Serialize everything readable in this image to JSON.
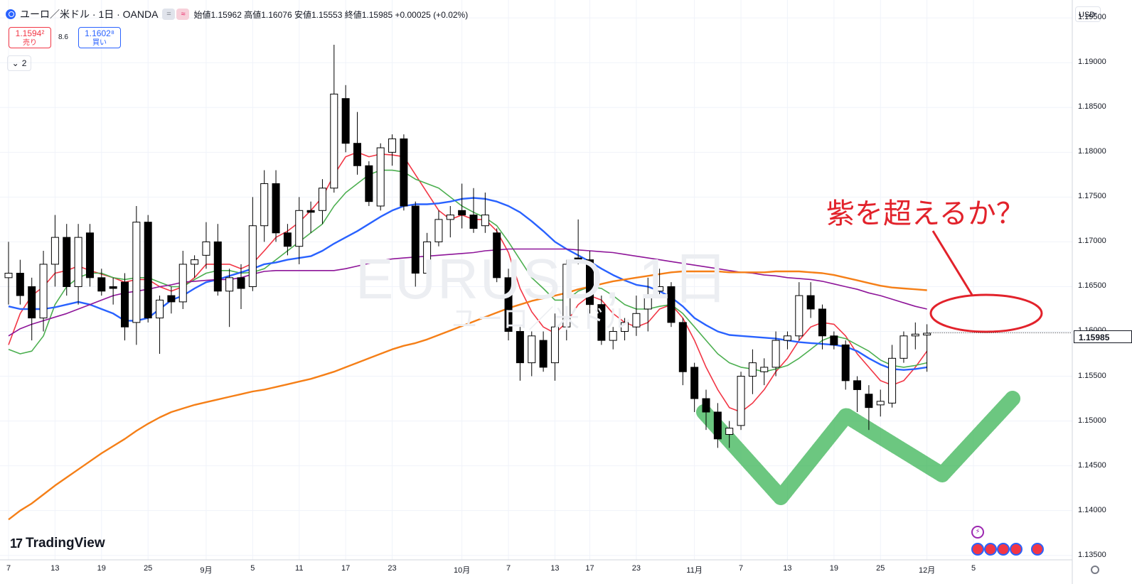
{
  "header": {
    "symbol_title": "ユーロ／米ドル · 1日 · OANDA",
    "open_label": "始値",
    "open": "1.15962",
    "high_label": "高値",
    "high": "1.16076",
    "low_label": "安値",
    "low": "1.15553",
    "close_label": "終値",
    "close": "1.15985",
    "change": "+0.00025 (+0.02%)",
    "pill1": "=",
    "pill2": "≈"
  },
  "trade": {
    "sell_price": "1.1594²",
    "sell_label": "売り",
    "spread": "8.6",
    "buy_price": "1.1602⁸",
    "buy_label": "買い",
    "collapse_count": "2"
  },
  "axis": {
    "currency": "USD",
    "current_price": "1.15985"
  },
  "annotation_text": "紫を超えるか？",
  "watermark": {
    "symbol": "EURUSD, 1日",
    "name": "ユーロ／米ドル"
  },
  "logo_text": "TradingView",
  "colors": {
    "up": "#ffffff",
    "down": "#000000",
    "ma_red": "#f23645",
    "ma_green": "#4caf50",
    "ma_blue": "#2962ff",
    "ma_purple": "#8e1599",
    "ma_orange": "#f57f17",
    "annotation": "#e2222b",
    "w_pattern": "#2eaf4a"
  },
  "chart_data": {
    "type": "candlestick",
    "ylim": [
      1.1345,
      1.197
    ],
    "yticks": [
      "1.19500",
      "1.19000",
      "1.18500",
      "1.18000",
      "1.17500",
      "1.17000",
      "1.16500",
      "1.16000",
      "1.15500",
      "1.15000",
      "1.14500",
      "1.14000",
      "1.13500"
    ],
    "x_tick_labels": [
      "7",
      "13",
      "19",
      "25",
      "9月",
      "5",
      "11",
      "17",
      "23",
      "10月",
      "7",
      "13",
      "17",
      "23",
      "11月",
      "7",
      "13",
      "19",
      "25",
      "12月",
      "5"
    ],
    "candles": [
      {
        "o": 1.166,
        "h": 1.17,
        "l": 1.163,
        "c": 1.1665
      },
      {
        "o": 1.1665,
        "h": 1.168,
        "l": 1.163,
        "c": 1.164
      },
      {
        "o": 1.165,
        "h": 1.166,
        "l": 1.159,
        "c": 1.1615
      },
      {
        "o": 1.1615,
        "h": 1.169,
        "l": 1.16,
        "c": 1.1675
      },
      {
        "o": 1.1675,
        "h": 1.173,
        "l": 1.165,
        "c": 1.1705
      },
      {
        "o": 1.1705,
        "h": 1.172,
        "l": 1.164,
        "c": 1.165
      },
      {
        "o": 1.165,
        "h": 1.172,
        "l": 1.163,
        "c": 1.1705
      },
      {
        "o": 1.171,
        "h": 1.172,
        "l": 1.165,
        "c": 1.166
      },
      {
        "o": 1.166,
        "h": 1.167,
        "l": 1.164,
        "c": 1.1645
      },
      {
        "o": 1.165,
        "h": 1.166,
        "l": 1.163,
        "c": 1.1648
      },
      {
        "o": 1.1655,
        "h": 1.1665,
        "l": 1.159,
        "c": 1.1605
      },
      {
        "o": 1.161,
        "h": 1.174,
        "l": 1.1585,
        "c": 1.1722
      },
      {
        "o": 1.1722,
        "h": 1.173,
        "l": 1.161,
        "c": 1.1615
      },
      {
        "o": 1.1615,
        "h": 1.164,
        "l": 1.1575,
        "c": 1.1635
      },
      {
        "o": 1.164,
        "h": 1.165,
        "l": 1.162,
        "c": 1.1633
      },
      {
        "o": 1.1633,
        "h": 1.169,
        "l": 1.1625,
        "c": 1.1675
      },
      {
        "o": 1.1675,
        "h": 1.1685,
        "l": 1.166,
        "c": 1.168
      },
      {
        "o": 1.1685,
        "h": 1.1722,
        "l": 1.167,
        "c": 1.17
      },
      {
        "o": 1.17,
        "h": 1.172,
        "l": 1.164,
        "c": 1.1645
      },
      {
        "o": 1.1645,
        "h": 1.167,
        "l": 1.1605,
        "c": 1.166
      },
      {
        "o": 1.166,
        "h": 1.1675,
        "l": 1.1625,
        "c": 1.1648
      },
      {
        "o": 1.165,
        "h": 1.175,
        "l": 1.1645,
        "c": 1.1718
      },
      {
        "o": 1.1718,
        "h": 1.178,
        "l": 1.17,
        "c": 1.1765
      },
      {
        "o": 1.1765,
        "h": 1.178,
        "l": 1.17,
        "c": 1.171
      },
      {
        "o": 1.171,
        "h": 1.172,
        "l": 1.1685,
        "c": 1.1695
      },
      {
        "o": 1.1695,
        "h": 1.175,
        "l": 1.1675,
        "c": 1.1735
      },
      {
        "o": 1.1735,
        "h": 1.1745,
        "l": 1.171,
        "c": 1.1733
      },
      {
        "o": 1.1735,
        "h": 1.177,
        "l": 1.172,
        "c": 1.176
      },
      {
        "o": 1.176,
        "h": 1.192,
        "l": 1.1755,
        "c": 1.1865
      },
      {
        "o": 1.186,
        "h": 1.1875,
        "l": 1.18,
        "c": 1.181
      },
      {
        "o": 1.181,
        "h": 1.1845,
        "l": 1.1775,
        "c": 1.1785
      },
      {
        "o": 1.1785,
        "h": 1.179,
        "l": 1.174,
        "c": 1.1745
      },
      {
        "o": 1.174,
        "h": 1.181,
        "l": 1.1735,
        "c": 1.1805
      },
      {
        "o": 1.18,
        "h": 1.182,
        "l": 1.1785,
        "c": 1.1815
      },
      {
        "o": 1.1815,
        "h": 1.182,
        "l": 1.1735,
        "c": 1.174
      },
      {
        "o": 1.174,
        "h": 1.1745,
        "l": 1.165,
        "c": 1.1665
      },
      {
        "o": 1.1665,
        "h": 1.171,
        "l": 1.1655,
        "c": 1.17
      },
      {
        "o": 1.17,
        "h": 1.1735,
        "l": 1.1695,
        "c": 1.1725
      },
      {
        "o": 1.1725,
        "h": 1.174,
        "l": 1.1705,
        "c": 1.173
      },
      {
        "o": 1.1735,
        "h": 1.1765,
        "l": 1.1715,
        "c": 1.173
      },
      {
        "o": 1.173,
        "h": 1.176,
        "l": 1.171,
        "c": 1.1715
      },
      {
        "o": 1.1718,
        "h": 1.1755,
        "l": 1.171,
        "c": 1.173
      },
      {
        "o": 1.171,
        "h": 1.1715,
        "l": 1.1655,
        "c": 1.166
      },
      {
        "o": 1.166,
        "h": 1.167,
        "l": 1.159,
        "c": 1.16
      },
      {
        "o": 1.16,
        "h": 1.1605,
        "l": 1.1545,
        "c": 1.1565
      },
      {
        "o": 1.1565,
        "h": 1.16,
        "l": 1.155,
        "c": 1.1595
      },
      {
        "o": 1.159,
        "h": 1.16,
        "l": 1.1555,
        "c": 1.156
      },
      {
        "o": 1.1565,
        "h": 1.162,
        "l": 1.1545,
        "c": 1.1605
      },
      {
        "o": 1.1605,
        "h": 1.168,
        "l": 1.159,
        "c": 1.1675
      },
      {
        "o": 1.1682,
        "h": 1.1725,
        "l": 1.1675,
        "c": 1.168
      },
      {
        "o": 1.168,
        "h": 1.169,
        "l": 1.162,
        "c": 1.163
      },
      {
        "o": 1.163,
        "h": 1.164,
        "l": 1.1585,
        "c": 1.159
      },
      {
        "o": 1.159,
        "h": 1.1605,
        "l": 1.158,
        "c": 1.16
      },
      {
        "o": 1.16,
        "h": 1.1615,
        "l": 1.159,
        "c": 1.161
      },
      {
        "o": 1.1605,
        "h": 1.164,
        "l": 1.1595,
        "c": 1.162
      },
      {
        "o": 1.1625,
        "h": 1.166,
        "l": 1.16,
        "c": 1.164
      },
      {
        "o": 1.1645,
        "h": 1.167,
        "l": 1.164,
        "c": 1.165
      },
      {
        "o": 1.165,
        "h": 1.1655,
        "l": 1.1605,
        "c": 1.161
      },
      {
        "o": 1.161,
        "h": 1.1615,
        "l": 1.154,
        "c": 1.1555
      },
      {
        "o": 1.156,
        "h": 1.1565,
        "l": 1.151,
        "c": 1.1525
      },
      {
        "o": 1.1525,
        "h": 1.1535,
        "l": 1.149,
        "c": 1.151
      },
      {
        "o": 1.151,
        "h": 1.152,
        "l": 1.147,
        "c": 1.148
      },
      {
        "o": 1.1485,
        "h": 1.15,
        "l": 1.147,
        "c": 1.1492
      },
      {
        "o": 1.1495,
        "h": 1.1555,
        "l": 1.149,
        "c": 1.155
      },
      {
        "o": 1.155,
        "h": 1.158,
        "l": 1.153,
        "c": 1.1565
      },
      {
        "o": 1.1555,
        "h": 1.157,
        "l": 1.154,
        "c": 1.156
      },
      {
        "o": 1.156,
        "h": 1.16,
        "l": 1.155,
        "c": 1.159
      },
      {
        "o": 1.159,
        "h": 1.16,
        "l": 1.158,
        "c": 1.1595
      },
      {
        "o": 1.1595,
        "h": 1.1655,
        "l": 1.159,
        "c": 1.164
      },
      {
        "o": 1.164,
        "h": 1.1655,
        "l": 1.1615,
        "c": 1.1625
      },
      {
        "o": 1.1625,
        "h": 1.163,
        "l": 1.158,
        "c": 1.1595
      },
      {
        "o": 1.1595,
        "h": 1.16,
        "l": 1.158,
        "c": 1.1585
      },
      {
        "o": 1.1585,
        "h": 1.159,
        "l": 1.1535,
        "c": 1.1545
      },
      {
        "o": 1.1545,
        "h": 1.155,
        "l": 1.151,
        "c": 1.1535
      },
      {
        "o": 1.153,
        "h": 1.154,
        "l": 1.149,
        "c": 1.1515
      },
      {
        "o": 1.1518,
        "h": 1.1535,
        "l": 1.1505,
        "c": 1.1522
      },
      {
        "o": 1.152,
        "h": 1.1585,
        "l": 1.1515,
        "c": 1.157
      },
      {
        "o": 1.157,
        "h": 1.16,
        "l": 1.1565,
        "c": 1.1595
      },
      {
        "o": 1.1595,
        "h": 1.161,
        "l": 1.158,
        "c": 1.1597
      },
      {
        "o": 1.1596,
        "h": 1.1608,
        "l": 1.1555,
        "c": 1.1598
      }
    ],
    "moving_averages": [
      {
        "color": "#f23645",
        "values": [
          1.1585,
          1.162,
          1.164,
          1.165,
          1.1665,
          1.1668,
          1.1673,
          1.1668,
          1.1664,
          1.166,
          1.1655,
          1.1658,
          1.1658,
          1.165,
          1.1645,
          1.165,
          1.166,
          1.1675,
          1.1675,
          1.1675,
          1.167,
          1.1676,
          1.169,
          1.1705,
          1.1712,
          1.1722,
          1.1735,
          1.175,
          1.1775,
          1.1795,
          1.18,
          1.1795,
          1.1798,
          1.1797,
          1.1795,
          1.1775,
          1.1755,
          1.1735,
          1.1725,
          1.173,
          1.1725,
          1.1725,
          1.1712,
          1.1688,
          1.1648,
          1.1622,
          1.1605,
          1.1598,
          1.161,
          1.163,
          1.164,
          1.1635,
          1.162,
          1.161,
          1.1605,
          1.161,
          1.1625,
          1.163,
          1.1615,
          1.159,
          1.156,
          1.1535,
          1.1515,
          1.151,
          1.152,
          1.1535,
          1.1555,
          1.157,
          1.159,
          1.1605,
          1.161,
          1.1608,
          1.1595,
          1.1575,
          1.156,
          1.1545,
          1.154,
          1.1545,
          1.156,
          1.1578
        ]
      },
      {
        "color": "#4caf50",
        "values": [
          1.158,
          1.1575,
          1.1578,
          1.1595,
          1.163,
          1.165,
          1.166,
          1.1665,
          1.1665,
          1.166,
          1.1658,
          1.166,
          1.166,
          1.1655,
          1.165,
          1.165,
          1.1658,
          1.1665,
          1.1668,
          1.1668,
          1.1665,
          1.1666,
          1.167,
          1.168,
          1.169,
          1.17,
          1.171,
          1.172,
          1.174,
          1.1755,
          1.1765,
          1.1775,
          1.178,
          1.178,
          1.1778,
          1.177,
          1.1765,
          1.176,
          1.175,
          1.174,
          1.1733,
          1.1727,
          1.1718,
          1.17,
          1.168,
          1.166,
          1.1648,
          1.1635,
          1.1635,
          1.1645,
          1.165,
          1.1648,
          1.164,
          1.163,
          1.1625,
          1.1625,
          1.1628,
          1.163,
          1.162,
          1.1605,
          1.159,
          1.1575,
          1.1565,
          1.156,
          1.1558,
          1.1555,
          1.1558,
          1.1562,
          1.157,
          1.158,
          1.159,
          1.1595,
          1.1592,
          1.1585,
          1.1578,
          1.1568,
          1.1562,
          1.156,
          1.1562,
          1.1565
        ]
      },
      {
        "color": "#2962ff",
        "values": [
          1.1628,
          1.1625,
          1.1625,
          1.1625,
          1.1627,
          1.163,
          1.1633,
          1.163,
          1.1625,
          1.162,
          1.1612,
          1.1612,
          1.1615,
          1.1625,
          1.1635,
          1.164,
          1.1648,
          1.1655,
          1.1658,
          1.1662,
          1.1666,
          1.167,
          1.1675,
          1.1677,
          1.168,
          1.1682,
          1.1684,
          1.169,
          1.1698,
          1.1705,
          1.1712,
          1.172,
          1.1728,
          1.1735,
          1.174,
          1.1742,
          1.1742,
          1.1743,
          1.1745,
          1.1748,
          1.1749,
          1.1748,
          1.1745,
          1.174,
          1.1733,
          1.1723,
          1.1712,
          1.17,
          1.1692,
          1.1685,
          1.1678,
          1.167,
          1.1663,
          1.1657,
          1.1652,
          1.165,
          1.1645,
          1.1638,
          1.1628,
          1.1615,
          1.1607,
          1.16,
          1.1596,
          1.1595,
          1.1594,
          1.1593,
          1.1592,
          1.159,
          1.1588,
          1.1587,
          1.1586,
          1.1585,
          1.1583,
          1.1578,
          1.157,
          1.1563,
          1.1558,
          1.1557,
          1.1558,
          1.156
        ]
      },
      {
        "color": "#8e1599",
        "values": [
          1.1595,
          1.1603,
          1.1608,
          1.1612,
          1.1616,
          1.162,
          1.1625,
          1.163,
          1.1635,
          1.164,
          1.1643,
          1.1645,
          1.1647,
          1.165,
          1.1652,
          1.1655,
          1.1656,
          1.1657,
          1.1658,
          1.1658,
          1.166,
          1.1664,
          1.1667,
          1.1668,
          1.1668,
          1.1668,
          1.1668,
          1.1668,
          1.1668,
          1.167,
          1.1673,
          1.1676,
          1.1679,
          1.1681,
          1.1682,
          1.1683,
          1.1684,
          1.1685,
          1.1686,
          1.1687,
          1.1688,
          1.169,
          1.1691,
          1.1692,
          1.1692,
          1.1692,
          1.1692,
          1.1692,
          1.1692,
          1.1691,
          1.169,
          1.1689,
          1.1688,
          1.1686,
          1.1684,
          1.1682,
          1.168,
          1.1678,
          1.1676,
          1.1674,
          1.1672,
          1.167,
          1.1668,
          1.1666,
          1.1665,
          1.1663,
          1.1662,
          1.166,
          1.1659,
          1.1658,
          1.1656,
          1.1653,
          1.165,
          1.1647,
          1.1643,
          1.164,
          1.1636,
          1.1632,
          1.1628,
          1.1625
        ]
      },
      {
        "color": "#f57f17",
        "values": [
          1.139,
          1.14,
          1.1408,
          1.1418,
          1.1428,
          1.1437,
          1.1446,
          1.1455,
          1.1464,
          1.1472,
          1.148,
          1.1489,
          1.1497,
          1.1504,
          1.151,
          1.1514,
          1.1518,
          1.1521,
          1.1524,
          1.1527,
          1.153,
          1.1533,
          1.1535,
          1.1538,
          1.1541,
          1.1544,
          1.1547,
          1.1551,
          1.1555,
          1.156,
          1.1565,
          1.157,
          1.1575,
          1.158,
          1.1584,
          1.1587,
          1.1591,
          1.1596,
          1.1601,
          1.1606,
          1.1611,
          1.1616,
          1.1621,
          1.1626,
          1.163,
          1.1634,
          1.1637,
          1.164,
          1.1643,
          1.1647,
          1.165,
          1.1653,
          1.1656,
          1.1658,
          1.166,
          1.1662,
          1.1664,
          1.1666,
          1.1667,
          1.1667,
          1.1667,
          1.1667,
          1.1666,
          1.1666,
          1.1666,
          1.1666,
          1.1667,
          1.1667,
          1.1667,
          1.1666,
          1.1665,
          1.1663,
          1.166,
          1.1657,
          1.1654,
          1.1651,
          1.1649,
          1.1648,
          1.1647,
          1.1646
        ]
      }
    ]
  }
}
